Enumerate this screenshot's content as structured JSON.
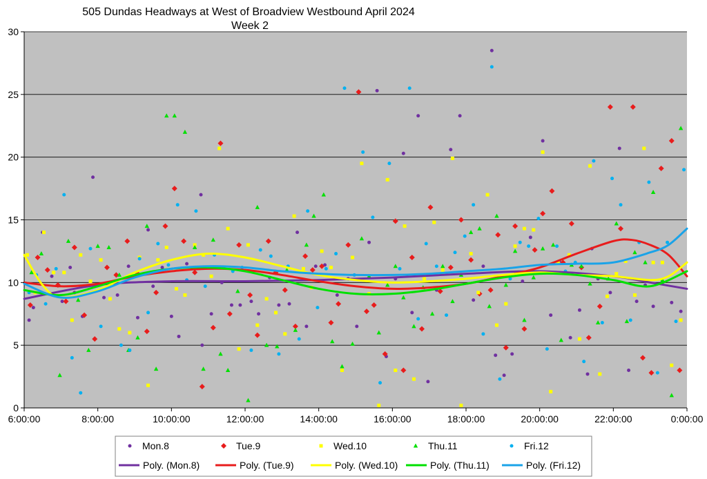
{
  "chart_data": {
    "type": "scatter",
    "title": "505 Dundas Headways at West of Broadview Westbound April 2024",
    "subtitle": "Week 2",
    "xlabel": "",
    "ylabel": "",
    "xlim": [
      "6:00:00",
      "0:00:00"
    ],
    "ylim": [
      0,
      30
    ],
    "x_ticks": [
      "6:00:00",
      "8:00:00",
      "10:00:00",
      "12:00:00",
      "14:00:00",
      "16:00:00",
      "18:00:00",
      "20:00:00",
      "22:00:00",
      "0:00:00"
    ],
    "y_ticks": [
      "0",
      "5",
      "10",
      "15",
      "20",
      "25",
      "30"
    ],
    "grid": "horizontal",
    "legend_position": "bottom",
    "plot_background": "#c0c0c0",
    "series": [
      {
        "name": "Mon.8",
        "marker": "circle",
        "color": "#7030a0",
        "x": [
          "6:08",
          "6:15",
          "6:30",
          "6:45",
          "7:02",
          "7:15",
          "7:22",
          "7:35",
          "7:52",
          "8:10",
          "8:32",
          "8:50",
          "9:05",
          "9:22",
          "9:30",
          "9:45",
          "10:00",
          "10:12",
          "10:25",
          "10:48",
          "10:50",
          "11:05",
          "11:22",
          "11:38",
          "11:52",
          "12:10",
          "12:22",
          "12:40",
          "12:55",
          "13:12",
          "13:25",
          "13:40",
          "13:55",
          "14:10",
          "14:30",
          "14:48",
          "15:02",
          "15:22",
          "15:35",
          "15:50",
          "16:05",
          "16:18",
          "16:32",
          "16:42",
          "16:58",
          "17:12",
          "17:35",
          "17:50",
          "18:12",
          "18:28",
          "18:42",
          "18:48",
          "19:02",
          "19:15",
          "19:32",
          "19:45",
          "20:05",
          "20:18",
          "20:32",
          "20:50",
          "21:05",
          "21:18",
          "21:25",
          "21:35",
          "21:55",
          "22:10",
          "22:25",
          "22:38",
          "22:52",
          "23:05",
          "23:20",
          "23:35",
          "23:50"
        ],
        "y": [
          7,
          8,
          14,
          10.5,
          8.5,
          11.2,
          9.2,
          7.3,
          18.4,
          8.8,
          9,
          11.3,
          7.2,
          14.2,
          9.7,
          11.2,
          7.3,
          5.7,
          11.5,
          17,
          5,
          7.5,
          10,
          8.2,
          8.2,
          8.5,
          7.5,
          10.4,
          8.2,
          8.3,
          14,
          6.5,
          11.3,
          11.4,
          9,
          10.3,
          6.5,
          13.2,
          25.3,
          4.1,
          10.3,
          20.3,
          7.6,
          23.3,
          2.1,
          9.4,
          20.6,
          23.3,
          8.6,
          11.3,
          28.5,
          4.2,
          2.6,
          4.3,
          10.1,
          13.6,
          21.3,
          7.4,
          11.7,
          5.6,
          7.8,
          2.7,
          12.7,
          10.3,
          9.2,
          20.7,
          3,
          8.5,
          9.8,
          8.1,
          10,
          8.4,
          7.7
        ]
      },
      {
        "name": "Tue.9",
        "marker": "diamond",
        "color": "#e81c1c",
        "x": [
          "6:10",
          "6:22",
          "6:38",
          "6:55",
          "7:08",
          "7:22",
          "7:38",
          "7:55",
          "8:15",
          "8:30",
          "8:48",
          "9:05",
          "9:20",
          "9:35",
          "9:50",
          "10:05",
          "10:20",
          "10:38",
          "10:50",
          "11:08",
          "11:20",
          "11:35",
          "11:50",
          "12:08",
          "12:20",
          "12:38",
          "12:50",
          "13:05",
          "13:22",
          "13:38",
          "13:50",
          "14:05",
          "14:20",
          "14:32",
          "14:48",
          "15:05",
          "15:18",
          "15:30",
          "15:48",
          "16:05",
          "16:18",
          "16:32",
          "16:48",
          "17:02",
          "17:18",
          "17:35",
          "17:52",
          "18:08",
          "18:22",
          "18:40",
          "18:52",
          "19:05",
          "19:20",
          "19:35",
          "19:52",
          "20:05",
          "20:20",
          "20:38",
          "20:52",
          "21:08",
          "21:20",
          "21:38",
          "21:55",
          "22:12",
          "22:32",
          "22:48",
          "23:02",
          "23:18",
          "23:35",
          "23:48"
        ],
        "y": [
          8.2,
          12,
          11,
          9.8,
          8.5,
          12.8,
          7.4,
          5.5,
          11.2,
          10.6,
          13.3,
          10.7,
          6.1,
          9.2,
          14.5,
          17.5,
          13.3,
          10.8,
          1.7,
          6.4,
          21.1,
          7.5,
          13,
          9,
          5.8,
          13.3,
          10.8,
          9.4,
          6.5,
          12.1,
          11,
          11.3,
          6.8,
          8.3,
          13,
          25.2,
          7.7,
          8.2,
          4.3,
          14.9,
          3,
          12,
          6.3,
          16,
          9.3,
          11.2,
          15,
          11.8,
          9.1,
          9.4,
          13.8,
          4.8,
          14.5,
          6.3,
          12.6,
          15.5,
          17.3,
          11.6,
          14.7,
          11.2,
          5.6,
          8.1,
          24,
          14.3,
          24,
          4,
          2.8,
          19.1,
          21.3,
          3
        ]
      },
      {
        "name": "Wed.10",
        "marker": "square",
        "color": "#ffff00",
        "x": [
          "6:05",
          "6:18",
          "6:32",
          "6:48",
          "7:05",
          "7:18",
          "7:32",
          "7:48",
          "8:05",
          "8:20",
          "8:35",
          "8:52",
          "9:08",
          "9:22",
          "9:38",
          "9:52",
          "10:08",
          "10:22",
          "10:38",
          "10:52",
          "11:05",
          "11:18",
          "11:32",
          "11:50",
          "12:05",
          "12:20",
          "12:35",
          "12:50",
          "13:05",
          "13:20",
          "13:35",
          "13:48",
          "14:05",
          "14:20",
          "14:38",
          "14:55",
          "15:10",
          "15:22",
          "15:38",
          "15:52",
          "16:05",
          "16:20",
          "16:35",
          "16:52",
          "17:08",
          "17:22",
          "17:38",
          "17:52",
          "18:08",
          "18:20",
          "18:35",
          "18:50",
          "19:05",
          "19:20",
          "19:35",
          "19:50",
          "20:05",
          "20:18",
          "20:30",
          "20:48",
          "21:05",
          "21:22",
          "21:38",
          "21:50",
          "22:05",
          "22:20",
          "22:35",
          "22:50",
          "23:05",
          "23:20",
          "23:35",
          "23:50"
        ],
        "y": [
          12.2,
          9.2,
          14,
          10.8,
          10.8,
          7,
          12.2,
          10.1,
          11.8,
          8.7,
          6.3,
          6,
          12,
          1.8,
          11.8,
          12.8,
          9.5,
          9,
          13,
          12.2,
          10.5,
          20.7,
          14.3,
          4.7,
          13,
          6.6,
          8.7,
          7.6,
          5.9,
          15.3,
          11.1,
          9.6,
          12.5,
          11.2,
          3,
          12,
          19.5,
          9.1,
          0.2,
          18.2,
          3,
          14.5,
          2.3,
          10.3,
          14.8,
          11,
          19.9,
          0.2,
          12.3,
          9.2,
          17,
          6.6,
          8.3,
          12.9,
          14.3,
          14.2,
          20.4,
          1.3,
          11.6,
          12.2,
          5.5,
          19.3,
          2.7,
          8.9,
          10.7,
          11.7,
          9,
          20.7,
          11.6,
          11.6,
          3.4,
          7
        ]
      },
      {
        "name": "Thu.11",
        "marker": "triangle",
        "color": "#00e000",
        "x": [
          "6:12",
          "6:28",
          "6:42",
          "6:58",
          "7:12",
          "7:28",
          "7:45",
          "8:00",
          "8:18",
          "8:35",
          "8:50",
          "9:05",
          "9:20",
          "9:35",
          "9:52",
          "10:05",
          "10:22",
          "10:38",
          "10:52",
          "11:08",
          "11:20",
          "11:32",
          "11:48",
          "12:05",
          "12:20",
          "12:35",
          "12:52",
          "13:08",
          "13:22",
          "13:40",
          "13:52",
          "14:08",
          "14:22",
          "14:38",
          "14:55",
          "15:10",
          "15:22",
          "15:38",
          "15:52",
          "16:05",
          "16:18",
          "16:35",
          "16:50",
          "17:05",
          "17:22",
          "17:38",
          "17:52",
          "18:08",
          "18:22",
          "18:38",
          "18:50",
          "19:05",
          "19:20",
          "19:35",
          "19:50",
          "20:05",
          "20:22",
          "20:35",
          "20:52",
          "21:08",
          "21:22",
          "21:35",
          "21:52",
          "22:05",
          "22:22",
          "22:35",
          "22:52",
          "23:05",
          "23:20",
          "23:35",
          "23:50"
        ],
        "y": [
          10.8,
          12.3,
          9.1,
          2.6,
          13.3,
          8.6,
          4.6,
          12.9,
          12.8,
          10.6,
          4.6,
          5.6,
          14.5,
          3.1,
          23.3,
          23.3,
          22,
          12.8,
          3.1,
          13.4,
          4.3,
          3,
          9.3,
          0.6,
          16,
          5,
          4.9,
          11,
          6.2,
          13,
          15.3,
          17,
          5.3,
          3.3,
          5.1,
          13.5,
          10.5,
          6,
          9.8,
          11.3,
          8.8,
          6.5,
          9.6,
          7.5,
          11.3,
          8.5,
          10.6,
          14,
          14.3,
          8.1,
          15.3,
          9.8,
          12.5,
          7,
          10.4,
          12.7,
          13,
          5.4,
          11.4,
          11.3,
          9.9,
          6.8,
          10.3,
          14.7,
          6.9,
          12.4,
          11.6,
          17.2,
          10.2,
          1,
          22.3
        ]
      },
      {
        "name": "Fri.12",
        "marker": "circle",
        "color": "#00b0f0",
        "x": [
          "6:08",
          "6:20",
          "6:35",
          "6:52",
          "7:05",
          "7:18",
          "7:32",
          "7:48",
          "8:05",
          "8:20",
          "8:38",
          "8:52",
          "9:08",
          "9:22",
          "9:38",
          "9:55",
          "10:10",
          "10:25",
          "10:40",
          "10:55",
          "11:10",
          "11:25",
          "11:40",
          "11:55",
          "12:10",
          "12:25",
          "12:42",
          "12:55",
          "13:10",
          "13:28",
          "13:42",
          "13:58",
          "14:12",
          "14:28",
          "14:42",
          "14:58",
          "15:12",
          "15:28",
          "15:40",
          "15:55",
          "16:12",
          "16:28",
          "16:42",
          "16:55",
          "17:12",
          "17:28",
          "17:42",
          "17:58",
          "18:12",
          "18:28",
          "18:42",
          "18:55",
          "19:12",
          "19:28",
          "19:42",
          "19:58",
          "20:12",
          "20:28",
          "20:42",
          "20:58",
          "21:12",
          "21:28",
          "21:42",
          "21:58",
          "22:12",
          "22:28",
          "22:42",
          "22:58",
          "23:12",
          "23:28",
          "23:42",
          "23:55"
        ],
        "y": [
          9.2,
          10.6,
          8.3,
          11.1,
          17,
          4,
          1.2,
          12.7,
          6.5,
          9.7,
          5,
          4.6,
          11.9,
          7.6,
          13.1,
          11.4,
          16.2,
          10.2,
          15.7,
          9.7,
          12.2,
          11.2,
          10.9,
          11.2,
          4.6,
          12.6,
          12.1,
          4.3,
          11.3,
          5.5,
          15.7,
          8,
          11.1,
          12.3,
          25.5,
          10.6,
          20.4,
          15.2,
          2,
          19.5,
          11.1,
          25.5,
          7.1,
          13.1,
          11.3,
          7.4,
          12.4,
          13.7,
          16.2,
          5.9,
          27.2,
          2.3,
          10.3,
          13.2,
          12.9,
          15.1,
          4.7,
          12.9,
          10.9,
          11.6,
          3.7,
          19.7,
          6.8,
          18.3,
          16.2,
          7,
          13.2,
          18,
          2.8,
          13.2,
          6.9,
          19
        ]
      }
    ],
    "trendlines": [
      {
        "name": "Poly. (Mon.8)",
        "color": "#7030a0",
        "x": [
          "6:00",
          "8:00",
          "10:00",
          "12:00",
          "14:00",
          "16:00",
          "18:00",
          "20:00",
          "22:00",
          "23:00",
          "24:00"
        ],
        "y": [
          8.7,
          9.8,
          10.1,
          10.1,
          10.2,
          10.4,
          10.7,
          10.9,
          10.5,
          10.0,
          9.5
        ]
      },
      {
        "name": "Poly. (Tue.9)",
        "color": "#e81c1c",
        "x": [
          "6:00",
          "7:00",
          "8:00",
          "9:00",
          "10:00",
          "11:00",
          "12:00",
          "13:00",
          "14:00",
          "15:00",
          "16:00",
          "17:00",
          "18:00",
          "19:00",
          "20:00",
          "21:00",
          "22:00",
          "22:30",
          "23:00",
          "23:30",
          "24:00"
        ],
        "y": [
          10.0,
          9.7,
          9.9,
          10.5,
          10.9,
          11.1,
          11.0,
          10.6,
          10.1,
          9.7,
          9.5,
          9.6,
          9.9,
          10.5,
          11.2,
          12.3,
          13.3,
          13.4,
          13.0,
          12.2,
          10.5
        ]
      },
      {
        "name": "Poly. (Wed.10)",
        "color": "#ffff00",
        "x": [
          "6:00",
          "6:30",
          "7:00",
          "8:00",
          "9:00",
          "10:00",
          "11:00",
          "12:00",
          "13:00",
          "14:00",
          "15:00",
          "16:00",
          "17:00",
          "18:00",
          "19:00",
          "20:00",
          "21:00",
          "22:00",
          "23:00",
          "23:30",
          "24:00"
        ],
        "y": [
          12.2,
          9.8,
          8.8,
          9.4,
          10.8,
          11.8,
          12.3,
          12.0,
          11.3,
          10.6,
          10.2,
          10.0,
          10.1,
          10.3,
          10.6,
          10.8,
          10.6,
          10.5,
          10.2,
          10.5,
          11.6
        ]
      },
      {
        "name": "Poly. (Thu.11)",
        "color": "#00e000",
        "x": [
          "6:00",
          "7:00",
          "8:00",
          "9:00",
          "10:00",
          "11:00",
          "12:00",
          "13:00",
          "14:00",
          "15:00",
          "16:00",
          "17:00",
          "18:00",
          "19:00",
          "20:00",
          "21:00",
          "22:00",
          "23:00",
          "24:00"
        ],
        "y": [
          9.4,
          9.0,
          9.7,
          10.6,
          11.1,
          11.2,
          10.9,
          10.2,
          9.5,
          9.1,
          9.1,
          9.4,
          9.9,
          10.4,
          10.7,
          10.6,
          10.2,
          9.7,
          10.9
        ]
      },
      {
        "name": "Poly. (Fri.12)",
        "color": "#1aa3e8",
        "x": [
          "6:00",
          "7:00",
          "8:00",
          "9:00",
          "10:00",
          "11:00",
          "12:00",
          "13:00",
          "14:00",
          "15:00",
          "16:00",
          "17:00",
          "18:00",
          "19:00",
          "20:00",
          "21:00",
          "22:00",
          "23:00",
          "23:30",
          "24:00"
        ],
        "y": [
          9.9,
          8.8,
          9.3,
          10.4,
          11.1,
          11.3,
          11.2,
          10.9,
          10.7,
          10.6,
          10.6,
          10.7,
          10.9,
          11.1,
          11.4,
          11.5,
          11.6,
          12.4,
          13.0,
          14.3
        ]
      }
    ]
  }
}
